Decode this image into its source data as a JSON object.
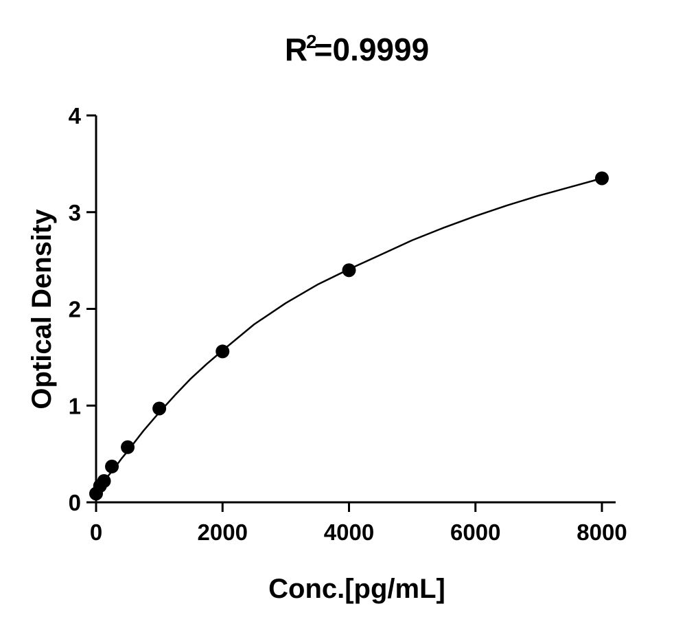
{
  "chart_data": {
    "type": "scatter",
    "title": "R",
    "title_superscript": "2",
    "title_suffix": "=0.9999",
    "xlabel": "Conc.[pg/mL]",
    "ylabel": "Optical Density",
    "xlim": [
      0,
      8200
    ],
    "ylim": [
      0,
      4
    ],
    "xticks": [
      0,
      2000,
      4000,
      6000,
      8000
    ],
    "yticks": [
      0,
      1,
      2,
      3,
      4
    ],
    "grid": false,
    "series": [
      {
        "x": [
          0,
          62.5,
          125,
          250,
          500,
          1000,
          2000,
          4000,
          8000
        ],
        "y": [
          0.09,
          0.17,
          0.22,
          0.37,
          0.57,
          0.97,
          1.56,
          2.4,
          3.35
        ],
        "color": "#000000",
        "marker": "circle"
      }
    ],
    "fit_curve": {
      "x": [
        0,
        50,
        100,
        200,
        300,
        400,
        500,
        750,
        1000,
        1250,
        1500,
        1750,
        2000,
        2500,
        3000,
        3500,
        4000,
        4500,
        5000,
        5500,
        6000,
        6500,
        7000,
        7500,
        8000
      ],
      "y": [
        0.09,
        0.14,
        0.19,
        0.28,
        0.36,
        0.45,
        0.53,
        0.74,
        0.93,
        1.11,
        1.28,
        1.43,
        1.57,
        1.84,
        2.06,
        2.25,
        2.41,
        2.56,
        2.71,
        2.84,
        2.96,
        3.07,
        3.17,
        3.26,
        3.35
      ],
      "color": "#000000"
    }
  }
}
